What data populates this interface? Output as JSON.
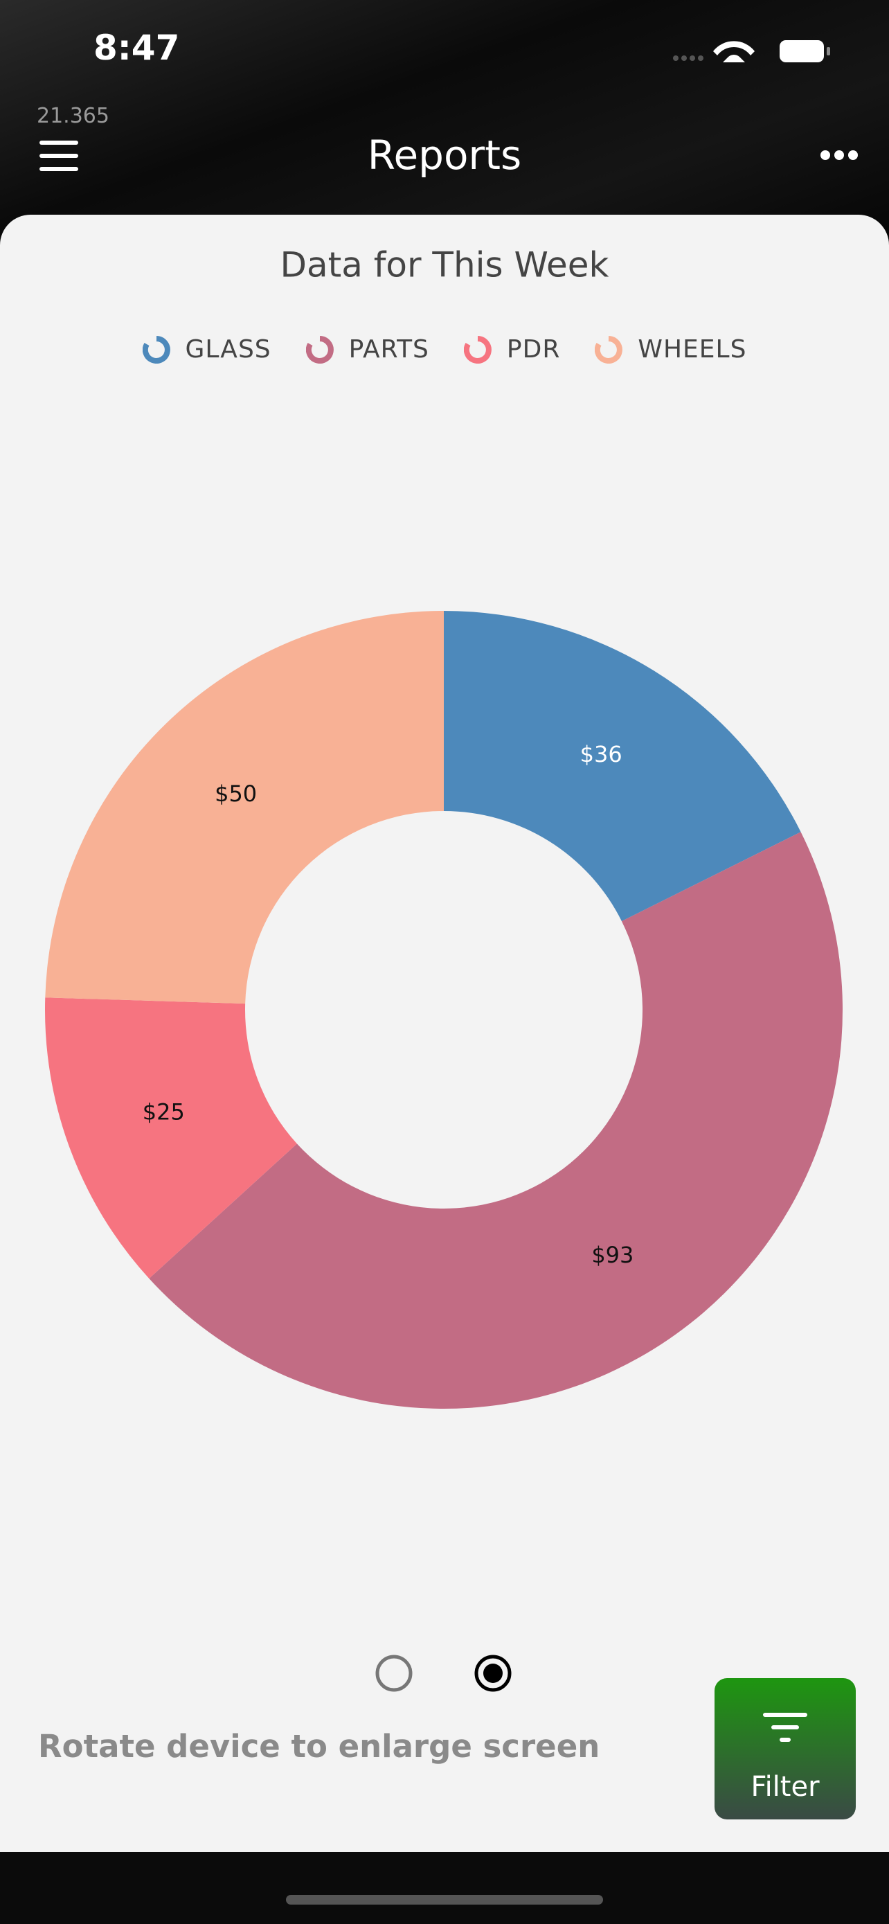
{
  "status_bar": {
    "time": "8:47"
  },
  "header": {
    "watermark": "21.365",
    "title": "Reports"
  },
  "chart_data": {
    "type": "donut",
    "title": "Data for This Week",
    "categories": [
      "GLASS",
      "PARTS",
      "PDR",
      "WHEELS"
    ],
    "values": [
      36,
      93,
      25,
      50
    ],
    "value_labels": [
      "$36",
      "$93",
      "$25",
      "$50"
    ],
    "colors": [
      "#4d89bb",
      "#c26c84",
      "#f67480",
      "#f8b195"
    ]
  },
  "footer": {
    "hint": "Rotate device to enlarge screen",
    "filter_button": "Filter"
  }
}
